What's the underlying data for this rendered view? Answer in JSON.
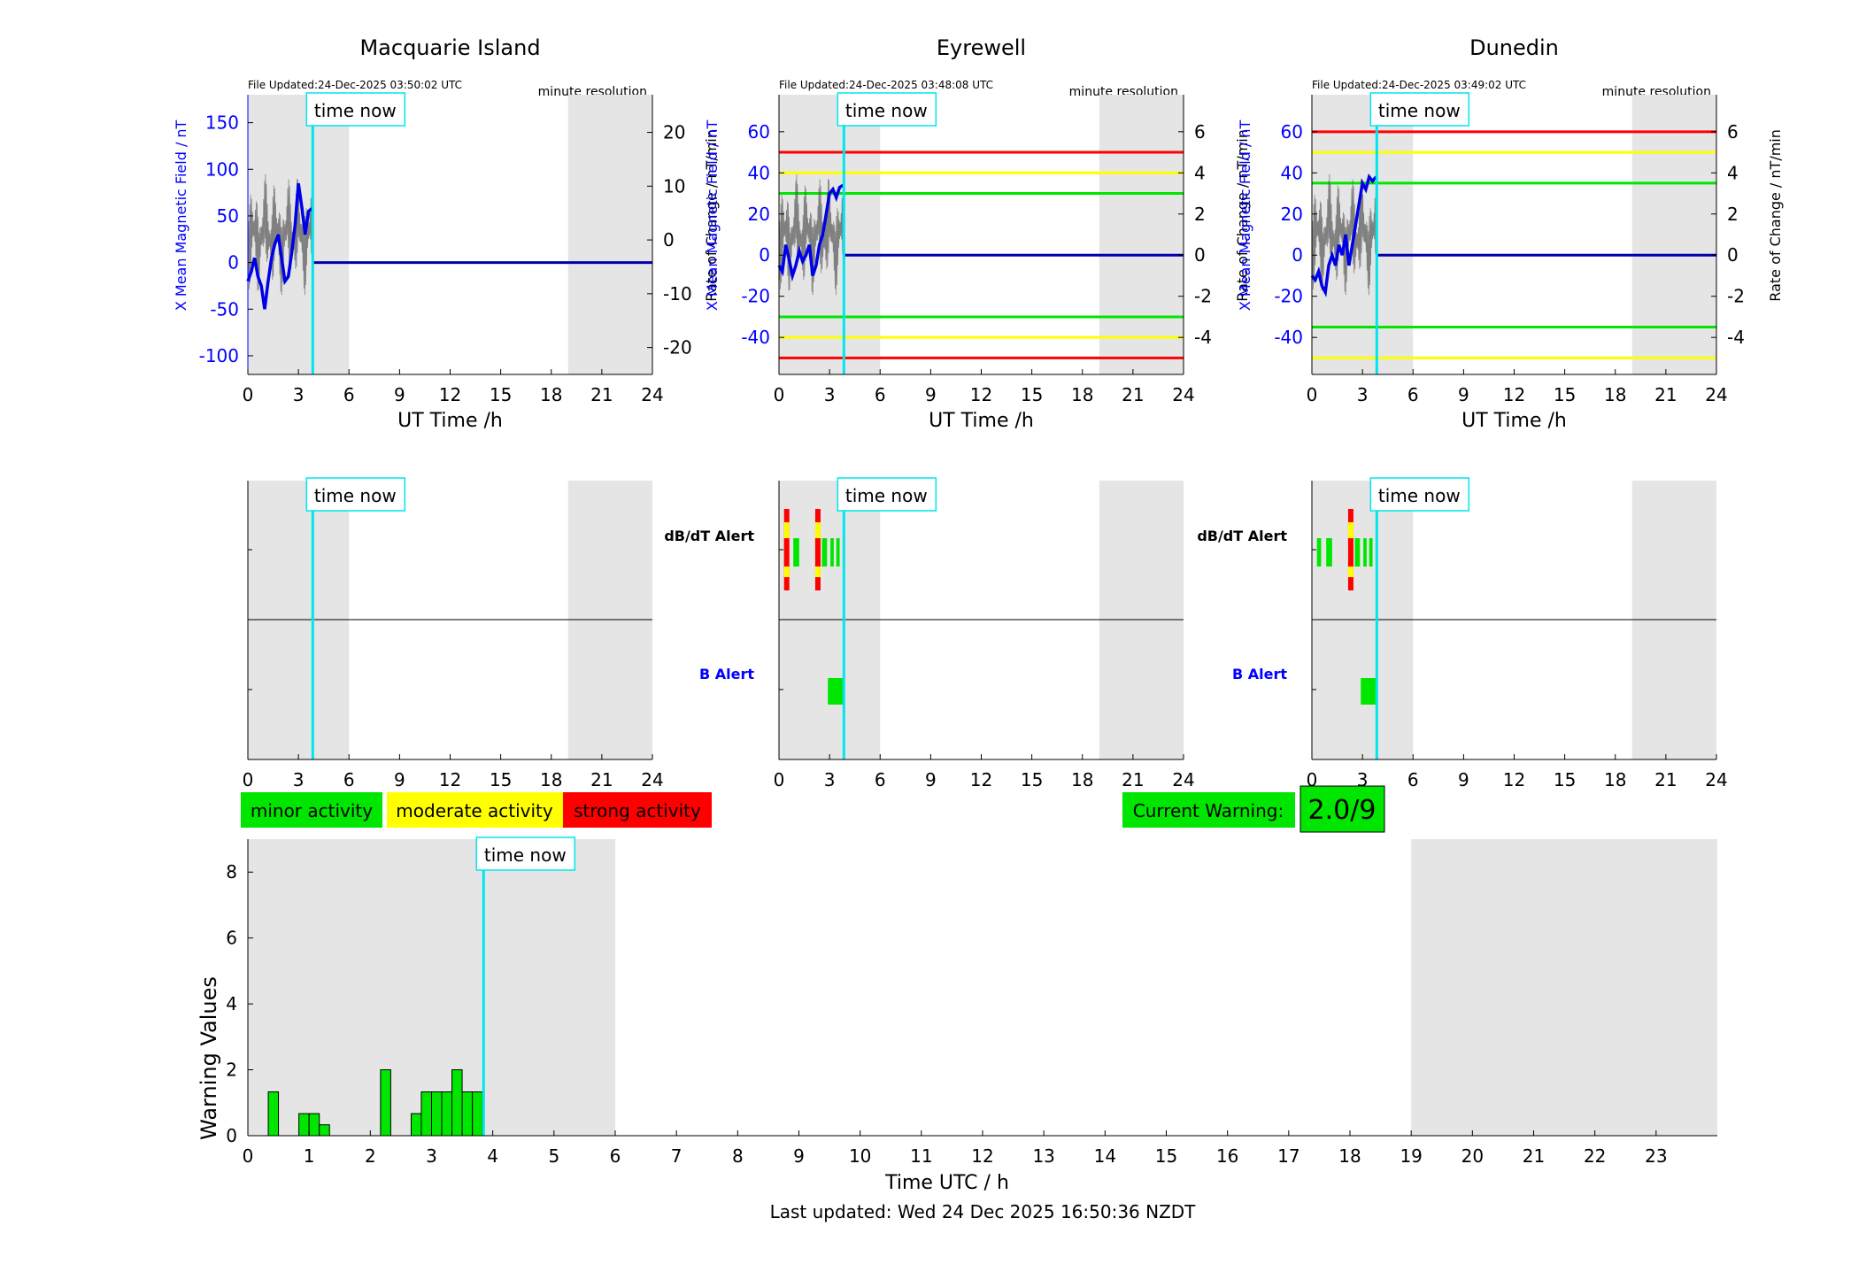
{
  "stations": [
    {
      "title": "Macquarie Island",
      "file_updated": "File Updated:24-Dec-2025 03:50:02 UTC",
      "resolution": "minute resolution",
      "ylabel_left": "X Mean Magnetic Field / nT",
      "ylabel_right": "Rate of Change / nT/min",
      "xlabel": "UT Time /h",
      "left_ticks": [
        "150",
        "100",
        "50",
        "0",
        "-50",
        "-100"
      ],
      "right_ticks": [
        "20",
        "10",
        "0",
        "-10",
        "-20"
      ],
      "x_ticks": [
        "0",
        "3",
        "6",
        "9",
        "12",
        "15",
        "18",
        "21",
        "24"
      ],
      "time_now_label": "time now",
      "alert_labels": {
        "dbdt": "",
        "b": ""
      },
      "alert_x_ticks": [
        "0",
        "3",
        "6",
        "9",
        "12",
        "15",
        "18",
        "21",
        "24"
      ]
    },
    {
      "title": "Eyrewell",
      "file_updated": "File Updated:24-Dec-2025 03:48:08 UTC",
      "resolution": "minute resolution",
      "ylabel_left": "X Mean Magnetic Field / nT",
      "ylabel_right": "Rate of Change / nT/min",
      "xlabel": "UT Time /h",
      "left_ticks": [
        "60",
        "40",
        "20",
        "0",
        "-20",
        "-40"
      ],
      "right_ticks": [
        "6",
        "4",
        "2",
        "0",
        "-2",
        "-4"
      ],
      "x_ticks": [
        "0",
        "3",
        "6",
        "9",
        "12",
        "15",
        "18",
        "21",
        "24"
      ],
      "time_now_label": "time now",
      "alert_labels": {
        "dbdt": "dB/dT Alert",
        "b": "B Alert"
      },
      "alert_x_ticks": [
        "0",
        "3",
        "6",
        "9",
        "12",
        "15",
        "18",
        "21",
        "24"
      ]
    },
    {
      "title": "Dunedin",
      "file_updated": "File Updated:24-Dec-2025 03:49:02 UTC",
      "resolution": "minute resolution",
      "ylabel_left": "X Mean Magnetic Field / nT",
      "ylabel_right": "Rate of Change / nT/min",
      "xlabel": "UT Time /h",
      "left_ticks": [
        "60",
        "40",
        "20",
        "0",
        "-20",
        "-40"
      ],
      "right_ticks": [
        "6",
        "4",
        "2",
        "0",
        "-2",
        "-4"
      ],
      "x_ticks": [
        "0",
        "3",
        "6",
        "9",
        "12",
        "15",
        "18",
        "21",
        "24"
      ],
      "time_now_label": "time now",
      "alert_labels": {
        "dbdt": "dB/dT Alert",
        "b": "B Alert"
      },
      "alert_x_ticks": [
        "0",
        "3",
        "6",
        "9",
        "12",
        "15",
        "18",
        "21",
        "24"
      ]
    }
  ],
  "legend": {
    "minor": "minor activity",
    "moderate": "moderate activity",
    "strong": "strong activity"
  },
  "current_warning": {
    "label": "Current Warning:",
    "value": "2.0/9"
  },
  "warning_chart": {
    "ylabel": "Warning Values",
    "xlabel": "Time UTC / h",
    "y_ticks": [
      "0",
      "2",
      "4",
      "6",
      "8"
    ],
    "time_now_label": "time now",
    "last_updated": "Last updated: Wed 24 Dec 2025 16:50:36 NZDT"
  },
  "colors": {
    "minor": "#00e600",
    "moderate": "#ffff00",
    "strong": "#ff0000",
    "field_line": "#0000e6",
    "time_now": "#00e5ee",
    "shade": "#e5e5e5",
    "axis_blue": "#0000ff"
  },
  "chart_data": [
    {
      "type": "line",
      "title": "Macquarie Island",
      "xlabel": "UT Time /h",
      "ylabel": "X Mean Magnetic Field / nT",
      "y2label": "Rate of Change / nT/min",
      "xlim": [
        0,
        24
      ],
      "ylim": [
        -120,
        180
      ],
      "y2lim": [
        -25,
        27
      ],
      "time_now_h": 3.85,
      "shaded_hours": [
        [
          0,
          6
        ],
        [
          19,
          24
        ]
      ],
      "thresholds": [],
      "series": [
        {
          "name": "X Mean Magnetic Field",
          "x": [
            0,
            0.2,
            0.4,
            0.6,
            0.8,
            1.0,
            1.2,
            1.4,
            1.6,
            1.8,
            2.0,
            2.2,
            2.4,
            2.6,
            2.8,
            3.0,
            3.2,
            3.4,
            3.6,
            3.8
          ],
          "values": [
            -20,
            -10,
            5,
            -15,
            -25,
            -50,
            -20,
            5,
            20,
            30,
            5,
            -20,
            -15,
            10,
            40,
            85,
            60,
            30,
            55,
            58
          ]
        }
      ]
    },
    {
      "type": "line",
      "title": "Eyrewell",
      "xlabel": "UT Time /h",
      "ylabel": "X Mean Magnetic Field / nT",
      "y2label": "Rate of Change / nT/min",
      "xlim": [
        0,
        24
      ],
      "ylim": [
        -58,
        78
      ],
      "y2lim": [
        -5.8,
        7.8
      ],
      "time_now_h": 3.85,
      "shaded_hours": [
        [
          0,
          6
        ],
        [
          19,
          24
        ]
      ],
      "thresholds": [
        {
          "value": 50,
          "level": "strong"
        },
        {
          "value": 40,
          "level": "moderate"
        },
        {
          "value": 30,
          "level": "minor"
        },
        {
          "value": -30,
          "level": "minor"
        },
        {
          "value": -40,
          "level": "moderate"
        },
        {
          "value": -50,
          "level": "strong"
        }
      ],
      "series": [
        {
          "name": "X Mean Magnetic Field",
          "x": [
            0,
            0.2,
            0.4,
            0.6,
            0.8,
            1.0,
            1.2,
            1.4,
            1.6,
            1.8,
            2.0,
            2.2,
            2.4,
            2.6,
            2.8,
            3.0,
            3.2,
            3.4,
            3.6,
            3.8
          ],
          "values": [
            -5,
            -8,
            5,
            -2,
            -10,
            -5,
            2,
            -3,
            0,
            5,
            -10,
            -5,
            5,
            10,
            20,
            30,
            32,
            28,
            33,
            34
          ]
        }
      ]
    },
    {
      "type": "line",
      "title": "Dunedin",
      "xlabel": "UT Time /h",
      "ylabel": "X Mean Magnetic Field / nT",
      "y2label": "Rate of Change / nT/min",
      "xlim": [
        0,
        24
      ],
      "ylim": [
        -58,
        78
      ],
      "y2lim": [
        -5.8,
        7.8
      ],
      "time_now_h": 3.85,
      "shaded_hours": [
        [
          0,
          6
        ],
        [
          19,
          24
        ]
      ],
      "thresholds": [
        {
          "value": 60,
          "level": "strong"
        },
        {
          "value": 50,
          "level": "moderate"
        },
        {
          "value": 35,
          "level": "minor"
        },
        {
          "value": -35,
          "level": "minor"
        },
        {
          "value": -50,
          "level": "moderate"
        }
      ],
      "series": [
        {
          "name": "X Mean Magnetic Field",
          "x": [
            0,
            0.2,
            0.4,
            0.6,
            0.8,
            1.0,
            1.2,
            1.4,
            1.6,
            1.8,
            2.0,
            2.2,
            2.4,
            2.6,
            2.8,
            3.0,
            3.2,
            3.4,
            3.6,
            3.8
          ],
          "values": [
            -10,
            -12,
            -8,
            -15,
            -18,
            -5,
            0,
            -5,
            5,
            0,
            10,
            -5,
            5,
            15,
            25,
            35,
            32,
            38,
            36,
            38
          ]
        }
      ]
    },
    {
      "type": "bar",
      "title": "",
      "xlabel": "Time UTC / h",
      "ylabel": "Warning Values",
      "xlim": [
        0,
        24
      ],
      "ylim": [
        0,
        9
      ],
      "x_tick_values": [
        0,
        1,
        2,
        3,
        4,
        5,
        6,
        7,
        8,
        9,
        10,
        11,
        12,
        13,
        14,
        15,
        16,
        17,
        18,
        19,
        20,
        21,
        22,
        23
      ],
      "time_now_h": 3.85,
      "shaded_hours": [
        [
          0,
          6
        ],
        [
          19,
          24
        ]
      ],
      "bar_width_h": 0.1667,
      "starts_h": [
        0.333,
        0.833,
        1.0,
        1.167,
        2.167,
        2.667,
        2.833,
        3.0,
        3.167,
        3.333,
        3.5,
        3.667
      ],
      "values": [
        1.33,
        0.67,
        0.67,
        0.33,
        2.0,
        0.67,
        1.33,
        1.33,
        1.33,
        2.0,
        1.33,
        1.33
      ]
    }
  ]
}
